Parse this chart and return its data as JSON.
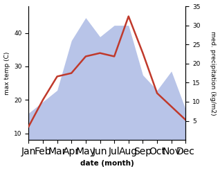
{
  "months": [
    "Jan",
    "Feb",
    "Mar",
    "Apr",
    "May",
    "Jun",
    "Jul",
    "Aug",
    "Sep",
    "Oct",
    "Nov",
    "Dec"
  ],
  "temperature": [
    12,
    20,
    27,
    28,
    33,
    34,
    33,
    45,
    34,
    22,
    18,
    14
  ],
  "precipitation": [
    7,
    10,
    13,
    26,
    32,
    27,
    30,
    30,
    17,
    13,
    18,
    8
  ],
  "temp_color": "#c0392b",
  "precip_color": "#b8c4e8",
  "temp_ylim": [
    8,
    48
  ],
  "precip_ylim": [
    0,
    35
  ],
  "temp_yticks": [
    10,
    20,
    30,
    40
  ],
  "precip_yticks": [
    5,
    10,
    15,
    20,
    25,
    30,
    35
  ],
  "xlabel": "date (month)",
  "ylabel_left": "max temp (C)",
  "ylabel_right": "med. precipitation (kg/m2)",
  "fig_width": 3.18,
  "fig_height": 2.47,
  "dpi": 100
}
